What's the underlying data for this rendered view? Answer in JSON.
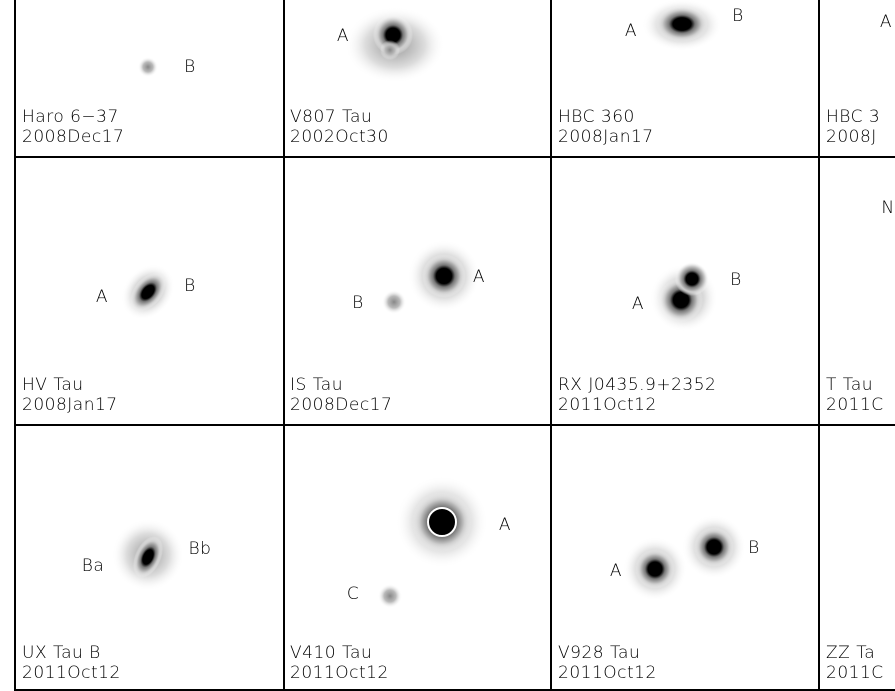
{
  "cells": [
    [
      {
        "name": "Haro 6−37",
        "date": "2008Dec17",
        "labels": [
          "B"
        ]
      },
      {
        "name": "V807 Tau",
        "date": "2002Oct30",
        "labels": [
          "A"
        ]
      },
      {
        "name": "HBC 360",
        "date": "2008Jan17",
        "labels": [
          "A",
          "B"
        ]
      },
      {
        "name": "HBC 3",
        "date": "2008J",
        "labels": [
          "A"
        ]
      }
    ],
    [
      {
        "name": "HV Tau",
        "date": "2008Jan17",
        "labels": [
          "A",
          "B"
        ]
      },
      {
        "name": "IS Tau",
        "date": "2008Dec17",
        "labels": [
          "B",
          "A"
        ]
      },
      {
        "name": "RX J0435.9+2352",
        "date": "2011Oct12",
        "labels": [
          "B",
          "A"
        ]
      },
      {
        "name": "T Tau",
        "date": "2011C",
        "labels": [
          "N"
        ]
      }
    ],
    [
      {
        "name": "UX Tau B",
        "date": "2011Oct12",
        "labels": [
          "Ba",
          "Bb"
        ]
      },
      {
        "name": "V410 Tau",
        "date": "2011Oct12",
        "labels": [
          "A",
          "C"
        ]
      },
      {
        "name": "V928 Tau",
        "date": "2011Oct12",
        "labels": [
          "B",
          "A"
        ]
      },
      {
        "name": "ZZ Ta",
        "date": "2011C",
        "labels": []
      }
    ]
  ]
}
